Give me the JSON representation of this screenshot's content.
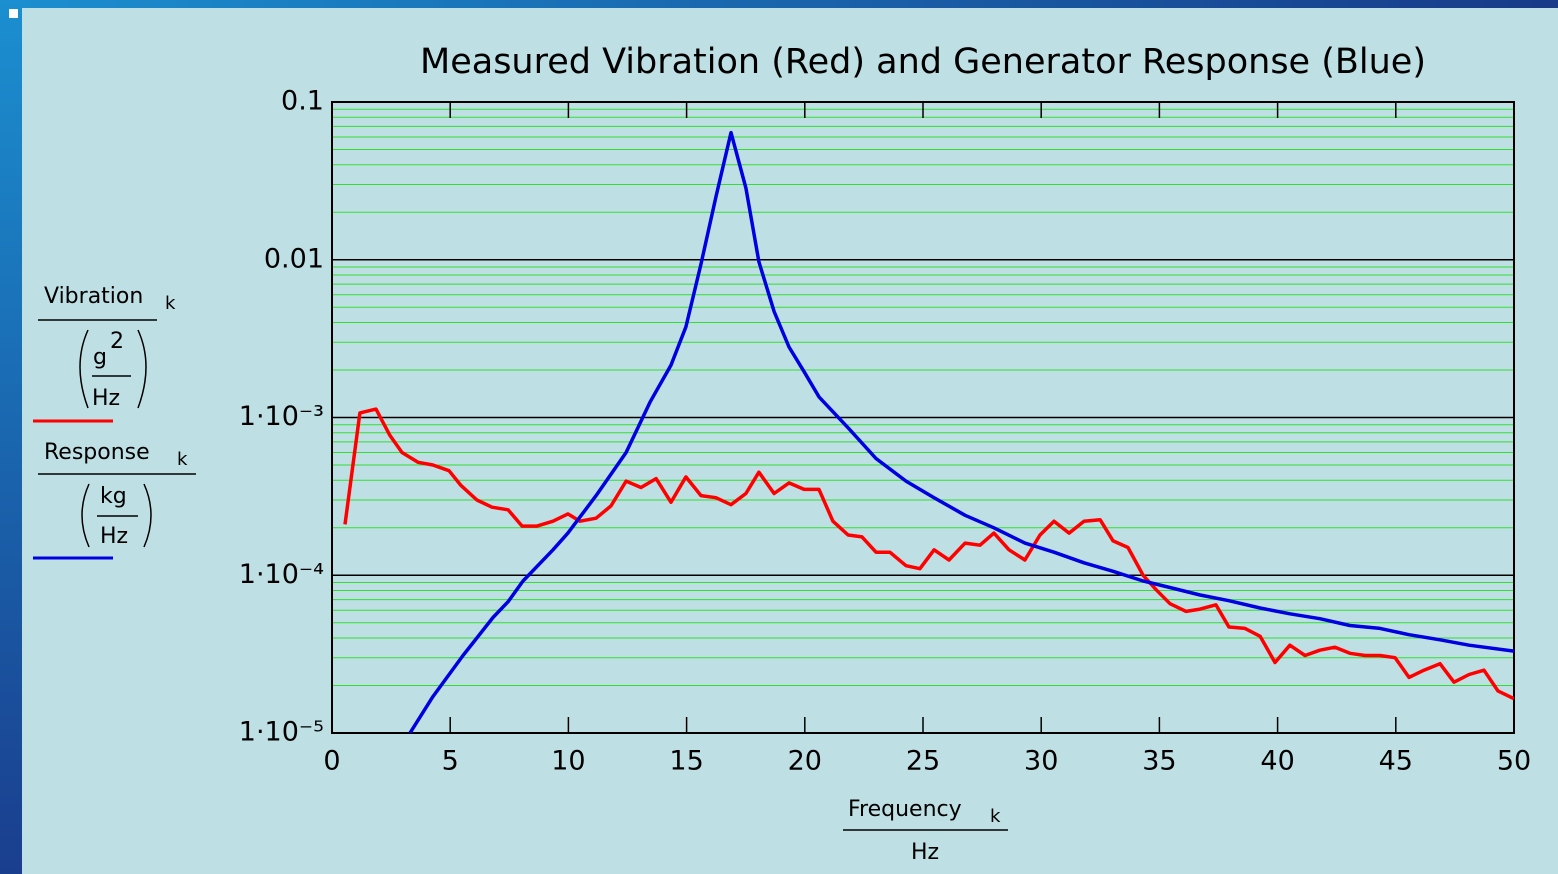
{
  "chart_data": {
    "type": "line",
    "title": "Measured Vibration (Red) and Generator Response (Blue)",
    "x_label": {
      "name": "Frequency",
      "subscript": "k",
      "unit": "Hz"
    },
    "xlim": [
      0,
      50
    ],
    "xticks": [
      0,
      5,
      10,
      15,
      20,
      25,
      30,
      35,
      40,
      45,
      50
    ],
    "ylim": [
      1e-05,
      0.1
    ],
    "yticks": [
      {
        "value": 1e-05,
        "label": "1·10⁻⁵"
      },
      {
        "value": 0.0001,
        "label": "1·10⁻⁴"
      },
      {
        "value": 0.001,
        "label": "1·10⁻³"
      },
      0.01,
      0.1
    ],
    "log_scale_y": true,
    "grid": true,
    "minor_grid": true,
    "minor_grid_color": "#33dd33",
    "grid_color": "#000000",
    "series": [
      {
        "name": "Vibration",
        "subscript": "k",
        "unit_numerator": "g",
        "unit_exponent": "2",
        "unit_denominator": "Hz",
        "color": "#ff0000",
        "x": [
          0.55,
          1.18,
          1.86,
          2.45,
          2.96,
          3.64,
          4.27,
          4.95,
          5.46,
          6.13,
          6.77,
          7.45,
          8.04,
          8.67,
          9.35,
          9.98,
          10.49,
          11.17,
          11.8,
          12.44,
          13.07,
          13.71,
          14.34,
          14.97,
          15.61,
          16.24,
          16.88,
          17.51,
          18.06,
          18.7,
          19.33,
          19.97,
          20.6,
          21.19,
          21.83,
          22.42,
          23.01,
          23.6,
          24.28,
          24.87,
          25.47,
          26.1,
          26.78,
          27.41,
          28.0,
          28.64,
          29.31,
          29.95,
          30.54,
          31.18,
          31.81,
          32.49,
          33.04,
          33.67,
          34.31,
          34.86,
          35.45,
          36.13,
          36.72,
          37.39,
          37.94,
          38.62,
          39.26,
          39.89,
          40.52,
          41.16,
          41.79,
          42.43,
          43.06,
          43.7,
          44.33,
          44.97,
          45.56,
          46.19,
          46.87,
          47.46,
          48.1,
          48.73,
          49.32,
          50.0
        ],
        "values": [
          0.00021,
          0.00107,
          0.00113,
          0.00077,
          0.0006,
          0.00052,
          0.0005,
          0.00046,
          0.00037,
          0.0003,
          0.00027,
          0.00026,
          0.000205,
          0.000205,
          0.00022,
          0.000245,
          0.00022,
          0.00023,
          0.000275,
          0.000395,
          0.00036,
          0.00041,
          0.00029,
          0.00042,
          0.00032,
          0.00031,
          0.00028,
          0.00033,
          0.00045,
          0.00033,
          0.000385,
          0.00035,
          0.00035,
          0.00022,
          0.00018,
          0.000175,
          0.00014,
          0.00014,
          0.000115,
          0.00011,
          0.000145,
          0.000125,
          0.00016,
          0.000155,
          0.000185,
          0.000145,
          0.000125,
          0.00018,
          0.00022,
          0.000185,
          0.00022,
          0.000225,
          0.000165,
          0.00015,
          0.0001,
          8.1e-05,
          6.6e-05,
          5.9e-05,
          6.1e-05,
          6.5e-05,
          4.7e-05,
          4.6e-05,
          4.1e-05,
          2.8e-05,
          3.6e-05,
          3.1e-05,
          3.35e-05,
          3.5e-05,
          3.2e-05,
          3.1e-05,
          3.1e-05,
          3e-05,
          2.25e-05,
          2.5e-05,
          2.75e-05,
          2.1e-05,
          2.35e-05,
          2.5e-05,
          1.85e-05,
          1.65e-05
        ]
      },
      {
        "name": "Response",
        "subscript": "k",
        "unit_numerator": "kg",
        "unit_denominator": "Hz",
        "color": "#0000e0",
        "x": [
          3.3,
          4.27,
          5.54,
          6.81,
          7.45,
          8.08,
          9.35,
          9.98,
          11.17,
          12.44,
          13.45,
          14.34,
          14.97,
          15.61,
          16.24,
          16.88,
          17.51,
          18.06,
          18.7,
          19.33,
          19.97,
          20.6,
          21.83,
          23.01,
          24.28,
          25.47,
          26.78,
          28.0,
          29.31,
          30.54,
          31.81,
          33.04,
          34.31,
          35.53,
          36.72,
          37.94,
          39.26,
          40.52,
          41.79,
          43.06,
          44.33,
          45.56,
          46.87,
          48.1,
          50.0
        ],
        "values": [
          1e-05,
          1.7e-05,
          3.1e-05,
          5.4e-05,
          6.8e-05,
          9.2e-05,
          0.000145,
          0.000185,
          0.00032,
          0.0006,
          0.00125,
          0.00215,
          0.00375,
          0.0094,
          0.025,
          0.064,
          0.0285,
          0.0097,
          0.0047,
          0.0028,
          0.00195,
          0.00135,
          0.00086,
          0.00055,
          0.000395,
          0.00031,
          0.00024,
          0.0002,
          0.00016,
          0.00014,
          0.00012,
          0.000106,
          9.2e-05,
          8.3e-05,
          7.5e-05,
          6.9e-05,
          6.2e-05,
          5.7e-05,
          5.3e-05,
          4.8e-05,
          4.6e-05,
          4.2e-05,
          3.9e-05,
          3.6e-05,
          3.3e-05
        ]
      }
    ]
  }
}
